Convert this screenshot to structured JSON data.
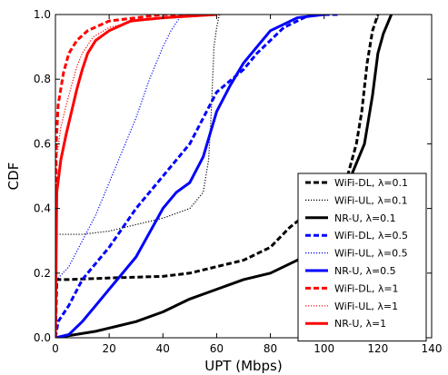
{
  "chart_data": {
    "type": "line",
    "title": "",
    "xlabel": "UPT (Mbps)",
    "ylabel": "CDF",
    "xlim": [
      0,
      140
    ],
    "ylim": [
      0,
      1
    ],
    "xticks": [
      0,
      20,
      40,
      60,
      80,
      100,
      120,
      140
    ],
    "yticks": [
      0.0,
      0.2,
      0.4,
      0.6,
      0.8,
      1.0
    ],
    "xtick_labels": [
      "0",
      "20",
      "40",
      "60",
      "80",
      "100",
      "120",
      "140"
    ],
    "ytick_labels": [
      "0.0",
      "0.2",
      "0.4",
      "0.6",
      "0.8",
      "1.0"
    ],
    "grid": false,
    "legend_position": "lower-right",
    "series": [
      {
        "name": "WiFi-DL, λ=0.1",
        "color": "#000000",
        "style": "dashed",
        "points": [
          [
            0,
            0
          ],
          [
            0.5,
            0.18
          ],
          [
            5,
            0.18
          ],
          [
            20,
            0.185
          ],
          [
            40,
            0.19
          ],
          [
            50,
            0.2
          ],
          [
            60,
            0.22
          ],
          [
            70,
            0.24
          ],
          [
            80,
            0.28
          ],
          [
            87,
            0.34
          ],
          [
            90,
            0.36
          ],
          [
            100,
            0.4
          ],
          [
            108,
            0.48
          ],
          [
            112,
            0.6
          ],
          [
            114,
            0.7
          ],
          [
            116,
            0.85
          ],
          [
            118,
            0.95
          ],
          [
            120,
            1.0
          ]
        ]
      },
      {
        "name": "WiFi-UL, λ=0.1",
        "color": "#000000",
        "style": "dotted",
        "points": [
          [
            0,
            0
          ],
          [
            0.5,
            0.32
          ],
          [
            10,
            0.32
          ],
          [
            20,
            0.33
          ],
          [
            30,
            0.35
          ],
          [
            40,
            0.37
          ],
          [
            50,
            0.4
          ],
          [
            55,
            0.45
          ],
          [
            57,
            0.55
          ],
          [
            58,
            0.7
          ],
          [
            59,
            0.9
          ],
          [
            60,
            0.96
          ],
          [
            61,
            1.0
          ]
        ]
      },
      {
        "name": "NR-U, λ=0.1",
        "color": "#000000",
        "style": "solid",
        "points": [
          [
            0,
            0
          ],
          [
            15,
            0.02
          ],
          [
            20,
            0.03
          ],
          [
            30,
            0.05
          ],
          [
            40,
            0.08
          ],
          [
            50,
            0.12
          ],
          [
            60,
            0.15
          ],
          [
            70,
            0.18
          ],
          [
            80,
            0.2
          ],
          [
            90,
            0.24
          ],
          [
            100,
            0.3
          ],
          [
            105,
            0.4
          ],
          [
            110,
            0.5
          ],
          [
            115,
            0.6
          ],
          [
            118,
            0.75
          ],
          [
            120,
            0.88
          ],
          [
            122,
            0.94
          ],
          [
            124,
            0.98
          ],
          [
            125,
            1.0
          ]
        ]
      },
      {
        "name": "WiFi-DL, λ=0.5",
        "color": "#0000ff",
        "style": "dashed",
        "points": [
          [
            0,
            0
          ],
          [
            1,
            0.05
          ],
          [
            5,
            0.1
          ],
          [
            10,
            0.18
          ],
          [
            20,
            0.28
          ],
          [
            30,
            0.4
          ],
          [
            40,
            0.5
          ],
          [
            50,
            0.6
          ],
          [
            55,
            0.68
          ],
          [
            60,
            0.76
          ],
          [
            70,
            0.83
          ],
          [
            75,
            0.88
          ],
          [
            80,
            0.92
          ],
          [
            85,
            0.96
          ],
          [
            90,
            0.98
          ],
          [
            95,
            1.0
          ],
          [
            105,
            1.0
          ]
        ]
      },
      {
        "name": "WiFi-UL, λ=0.5",
        "color": "#0000ff",
        "style": "dotted",
        "points": [
          [
            0,
            0
          ],
          [
            0.5,
            0.18
          ],
          [
            5,
            0.22
          ],
          [
            10,
            0.3
          ],
          [
            15,
            0.38
          ],
          [
            20,
            0.48
          ],
          [
            25,
            0.58
          ],
          [
            30,
            0.68
          ],
          [
            35,
            0.8
          ],
          [
            40,
            0.9
          ],
          [
            43,
            0.95
          ],
          [
            47,
            1.0
          ]
        ]
      },
      {
        "name": "NR-U, λ=0.5",
        "color": "#0000ff",
        "style": "solid",
        "points": [
          [
            0,
            0
          ],
          [
            5,
            0.01
          ],
          [
            10,
            0.05
          ],
          [
            15,
            0.1
          ],
          [
            20,
            0.15
          ],
          [
            30,
            0.25
          ],
          [
            40,
            0.4
          ],
          [
            45,
            0.45
          ],
          [
            50,
            0.48
          ],
          [
            55,
            0.56
          ],
          [
            60,
            0.7
          ],
          [
            65,
            0.78
          ],
          [
            70,
            0.85
          ],
          [
            75,
            0.9
          ],
          [
            80,
            0.95
          ],
          [
            90,
            0.99
          ],
          [
            100,
            1.0
          ]
        ]
      },
      {
        "name": "WiFi-DL, λ=1",
        "color": "#ff0000",
        "style": "dashed",
        "points": [
          [
            0,
            0
          ],
          [
            0.3,
            0.6
          ],
          [
            1,
            0.72
          ],
          [
            3,
            0.82
          ],
          [
            5,
            0.88
          ],
          [
            8,
            0.92
          ],
          [
            12,
            0.95
          ],
          [
            20,
            0.98
          ],
          [
            30,
            0.99
          ],
          [
            40,
            1.0
          ],
          [
            55,
            1.0
          ]
        ]
      },
      {
        "name": "WiFi-UL, λ=1",
        "color": "#ff0000",
        "style": "dotted",
        "points": [
          [
            0,
            0
          ],
          [
            0.3,
            0.55
          ],
          [
            2,
            0.65
          ],
          [
            4,
            0.72
          ],
          [
            6,
            0.78
          ],
          [
            8,
            0.84
          ],
          [
            10,
            0.88
          ],
          [
            14,
            0.93
          ],
          [
            20,
            0.96
          ],
          [
            30,
            0.98
          ],
          [
            45,
            0.99
          ],
          [
            62,
            1.0
          ]
        ]
      },
      {
        "name": "NR-U, λ=1",
        "color": "#ff0000",
        "style": "solid",
        "points": [
          [
            0,
            0
          ],
          [
            0.5,
            0.45
          ],
          [
            2,
            0.55
          ],
          [
            4,
            0.63
          ],
          [
            6,
            0.7
          ],
          [
            8,
            0.77
          ],
          [
            10,
            0.83
          ],
          [
            12,
            0.88
          ],
          [
            15,
            0.92
          ],
          [
            20,
            0.95
          ],
          [
            28,
            0.98
          ],
          [
            40,
            0.99
          ],
          [
            60,
            1.0
          ]
        ]
      }
    ]
  }
}
